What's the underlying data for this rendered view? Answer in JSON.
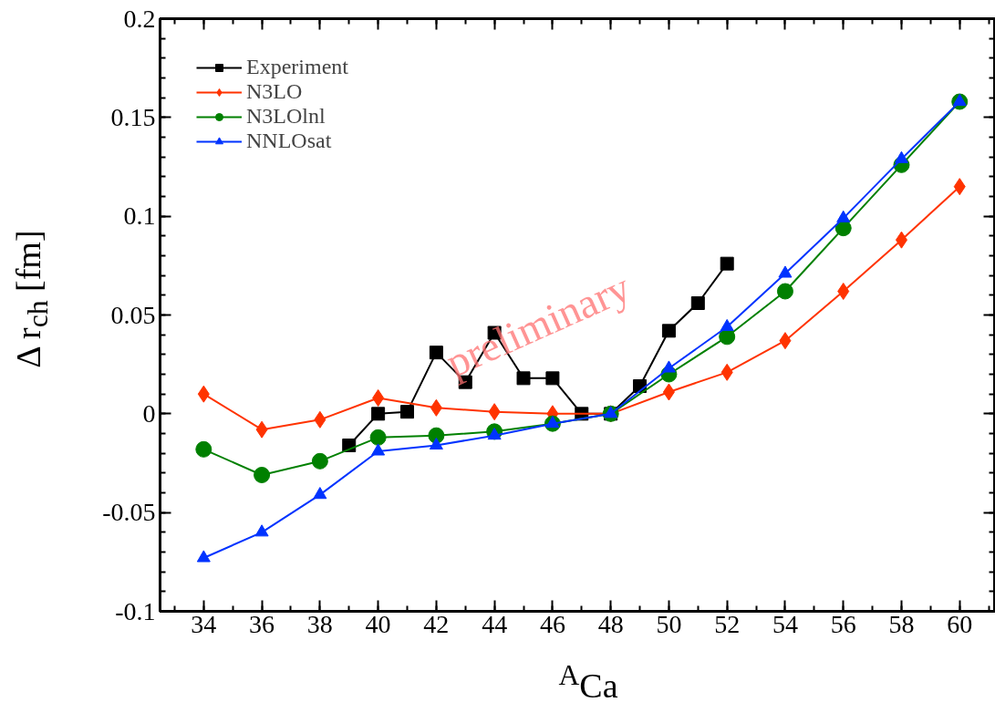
{
  "chart_data": {
    "type": "line",
    "xlabel": "$^{A}$Ca",
    "ylabel": "Δ r$_{ch}$ [fm]",
    "xlim": [
      32.5,
      61.2
    ],
    "ylim": [
      -0.1,
      0.2
    ],
    "xticks": [
      34,
      36,
      38,
      40,
      42,
      44,
      46,
      48,
      50,
      52,
      54,
      56,
      58,
      60
    ],
    "yticks": [
      -0.1,
      -0.05,
      0,
      0.05,
      0.1,
      0.15,
      0.2
    ],
    "grid": false,
    "legend": "top left",
    "annotations": [
      "preliminary"
    ],
    "series": [
      {
        "name": "Experiment",
        "color": "#000000",
        "marker": "square",
        "x": [
          39,
          40,
          41,
          42,
          43,
          44,
          45,
          46,
          47,
          48,
          49,
          50,
          51,
          52
        ],
        "values": [
          -0.016,
          0.0,
          0.001,
          0.031,
          0.016,
          0.041,
          0.018,
          0.018,
          0.0,
          0.0,
          0.014,
          0.042,
          0.056,
          0.076
        ]
      },
      {
        "name": "N3LO",
        "color": "#ff3300",
        "marker": "diamond",
        "x": [
          34,
          36,
          38,
          40,
          42,
          44,
          46,
          48,
          50,
          52,
          54,
          56,
          58,
          60
        ],
        "values": [
          0.01,
          -0.008,
          -0.003,
          0.008,
          0.003,
          0.001,
          0.0,
          0.0,
          0.011,
          0.021,
          0.037,
          0.062,
          0.088,
          0.115
        ]
      },
      {
        "name": "N3LOlnl",
        "color": "#008000",
        "marker": "circle",
        "x": [
          34,
          36,
          38,
          40,
          42,
          44,
          46,
          48,
          50,
          52,
          54,
          56,
          58,
          60
        ],
        "values": [
          -0.018,
          -0.031,
          -0.024,
          -0.012,
          -0.011,
          -0.009,
          -0.005,
          0.0,
          0.02,
          0.039,
          0.062,
          0.094,
          0.126,
          0.158
        ]
      },
      {
        "name": "NNLOsat",
        "color": "#0033ff",
        "marker": "triangle",
        "x": [
          34,
          36,
          38,
          40,
          42,
          44,
          46,
          48,
          50,
          52,
          54,
          56,
          58,
          60
        ],
        "values": [
          -0.073,
          -0.06,
          -0.041,
          -0.019,
          -0.016,
          -0.011,
          -0.005,
          0.0,
          0.023,
          0.044,
          0.071,
          0.099,
          0.129,
          0.158
        ]
      }
    ]
  }
}
